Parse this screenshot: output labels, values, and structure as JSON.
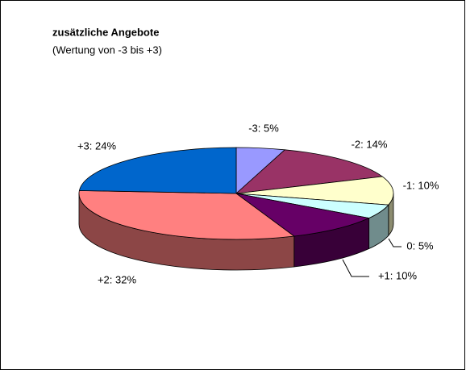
{
  "chart_data": {
    "type": "pie3d",
    "title": "zusätzliche Angebote",
    "subtitle": "(Wertung von -3 bis +3)",
    "values": [
      5,
      14,
      10,
      5,
      10,
      32,
      24
    ],
    "value_labels": [
      "-3: 5%",
      "-2: 14%",
      "-1: 10%",
      "0: 5%",
      "+1: 10%",
      "+2: 32%",
      "+3: 24%"
    ],
    "colors": [
      "#9999ff",
      "#993366",
      "#ffffcc",
      "#ccffff",
      "#660066",
      "#ff8080",
      "#0066cc"
    ]
  }
}
